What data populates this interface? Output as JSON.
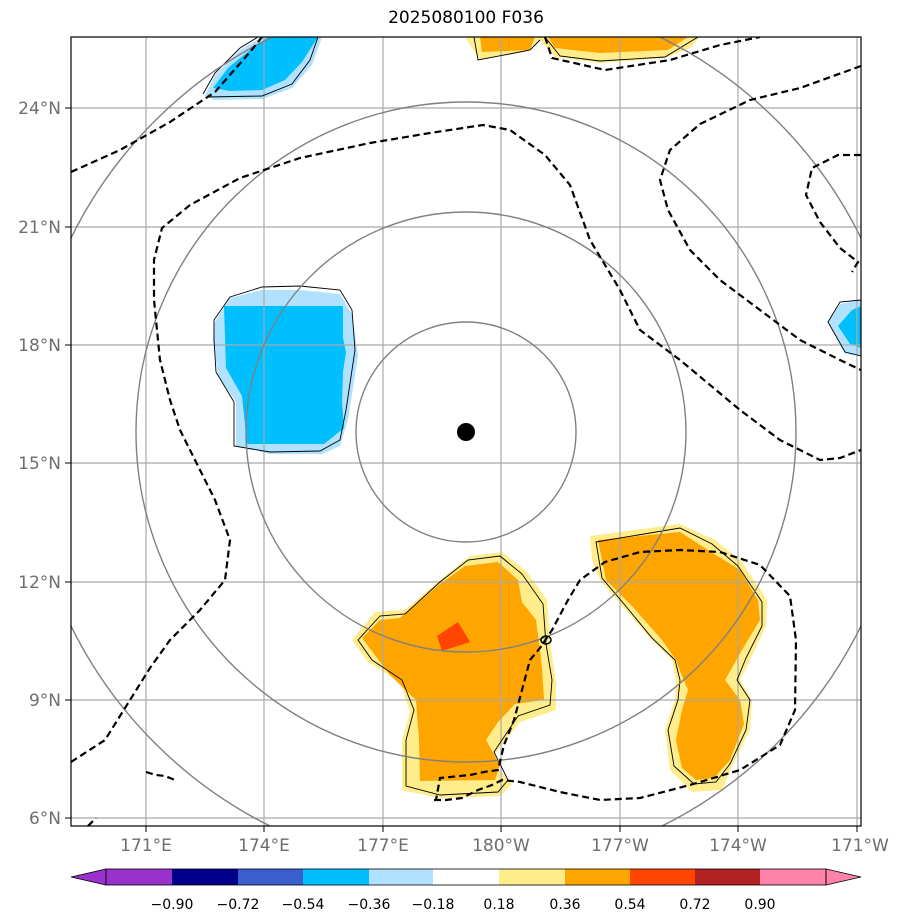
{
  "title": "2025080100 F036",
  "lat_ticks": [
    "24°N",
    "21°N",
    "18°N",
    "15°N",
    "12°N",
    "9°N",
    "6°N"
  ],
  "lon_ticks": [
    "171°E",
    "174°E",
    "177°E",
    "180°W",
    "177°W",
    "174°W",
    "171°W"
  ],
  "colorbar": {
    "colors": [
      "#9932cc",
      "#00008b",
      "#3a5fcd",
      "#00bfff",
      "#b0e2ff",
      "#ffffff",
      "#ffec8b",
      "#ffa500",
      "#ff4500",
      "#b22222",
      "#ff82ab"
    ],
    "labels": [
      "−0.90",
      "−0.72",
      "−0.54",
      "−0.36",
      "−0.18",
      "0.18",
      "0.36",
      "0.54",
      "0.72",
      "0.90"
    ]
  },
  "map_colors": {
    "gridline": "#a9a9a9",
    "range_ring": "#808080",
    "contour": "#000000",
    "center_marker": "#000000"
  }
}
